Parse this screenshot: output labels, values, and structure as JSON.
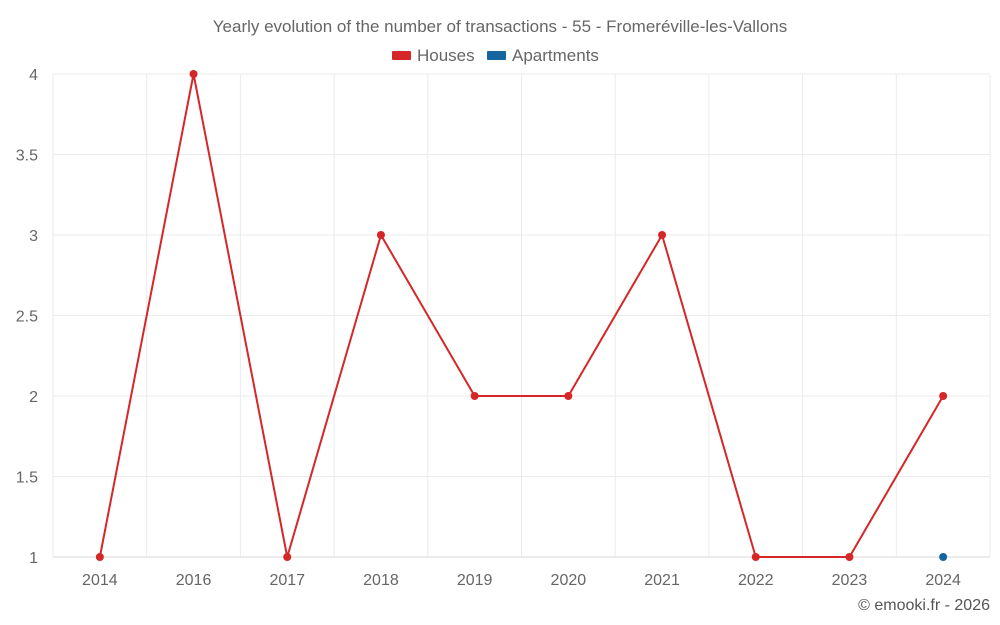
{
  "chart_data": {
    "type": "line",
    "title": "Yearly evolution of the number of transactions - 55 - Fromeréville-les-Vallons",
    "categories": [
      "2014",
      "2016",
      "2017",
      "2018",
      "2019",
      "2020",
      "2021",
      "2022",
      "2023",
      "2024"
    ],
    "series": [
      {
        "name": "Houses",
        "color": "#d62728",
        "values": [
          1,
          4,
          1,
          3,
          2,
          2,
          3,
          1,
          1,
          2
        ]
      },
      {
        "name": "Apartments",
        "color": "#1565a0",
        "values": [
          null,
          null,
          null,
          null,
          null,
          null,
          null,
          null,
          null,
          1
        ]
      }
    ],
    "y_ticks": [
      "1",
      "1.5",
      "2",
      "2.5",
      "3",
      "3.5",
      "4"
    ],
    "ylim": [
      1,
      4
    ],
    "xlabel": "",
    "ylabel": "",
    "grid": true,
    "legend_position": "top-center"
  },
  "footer": {
    "credit": "© emooki.fr - 2026"
  }
}
